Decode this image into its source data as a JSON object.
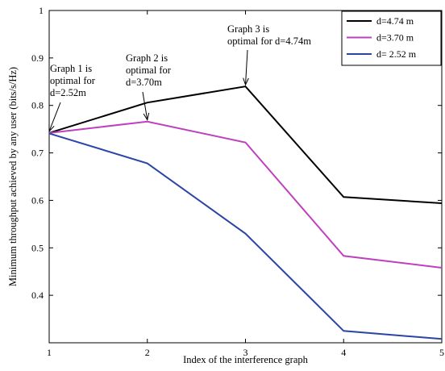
{
  "chart_data": {
    "type": "line",
    "title": "",
    "xlabel": "Index of the interference graph",
    "ylabel": "Minimum throughput achieved by any user (bits/s/Hz)",
    "x": [
      1,
      2,
      3,
      4,
      5
    ],
    "xlim": [
      1,
      5
    ],
    "ylim": [
      0.3,
      1.0
    ],
    "x_ticks": [
      "1",
      "2",
      "3",
      "4",
      "5"
    ],
    "y_ticks": [
      "0.4",
      "0.5",
      "0.6",
      "0.7",
      "0.8",
      "0.9",
      "1"
    ],
    "grid": false,
    "legend_position": "top-right",
    "series": [
      {
        "name": "d=4.74 m",
        "color": "#000000",
        "values": [
          0.742,
          0.806,
          0.84,
          0.607,
          0.594
        ]
      },
      {
        "name": "d=3.70 m",
        "color": "#bf40bf",
        "values": [
          0.742,
          0.766,
          0.722,
          0.483,
          0.458
        ]
      },
      {
        "name": "d= 2.52 m",
        "color": "#2b45a6",
        "values": [
          0.741,
          0.678,
          0.53,
          0.325,
          0.308
        ]
      }
    ],
    "annotations": [
      {
        "lines": [
          "Graph 1 is",
          "optimal for",
          "d=2.52m"
        ],
        "x": 1,
        "y": 0.742
      },
      {
        "lines": [
          "Graph 2 is",
          "optimal for",
          "d=3.70m"
        ],
        "x": 2,
        "y": 0.766
      },
      {
        "lines": [
          "Graph 3 is",
          "optimal for d=4.74m"
        ],
        "x": 3,
        "y": 0.84
      }
    ]
  }
}
